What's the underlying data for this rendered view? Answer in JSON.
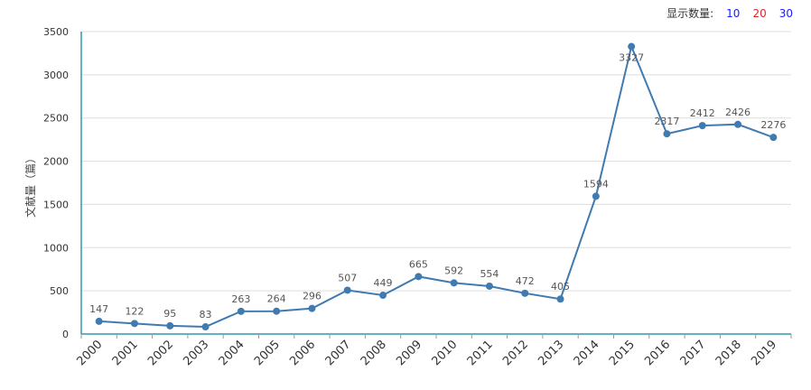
{
  "controls": {
    "label": "显示数量:",
    "options": [
      {
        "label": "10",
        "color": "#1a1aff"
      },
      {
        "label": "20",
        "color": "#e0262b"
      },
      {
        "label": "30",
        "color": "#1a1aff"
      }
    ]
  },
  "chart_data": {
    "type": "line",
    "ylabel": "文献量（篇）",
    "xlabel": "",
    "categories": [
      "2000",
      "2001",
      "2002",
      "2003",
      "2004",
      "2005",
      "2006",
      "2007",
      "2008",
      "2009",
      "2010",
      "2011",
      "2012",
      "2013",
      "2014",
      "2015",
      "2016",
      "2017",
      "2018",
      "2019"
    ],
    "values": [
      147,
      122,
      95,
      83,
      263,
      264,
      296,
      507,
      449,
      665,
      592,
      554,
      472,
      405,
      1594,
      3327,
      2317,
      2412,
      2426,
      2276
    ],
    "ylim": [
      0,
      3500
    ],
    "yticks": [
      "0",
      "500",
      "1000",
      "1500",
      "2000",
      "2500",
      "3000",
      "3500"
    ],
    "grid": true,
    "data_labels": true,
    "colors": {
      "line": "#3f7ab0",
      "axis": "#2f9bb0",
      "grid": "#dddddd",
      "label": "#555555"
    }
  }
}
